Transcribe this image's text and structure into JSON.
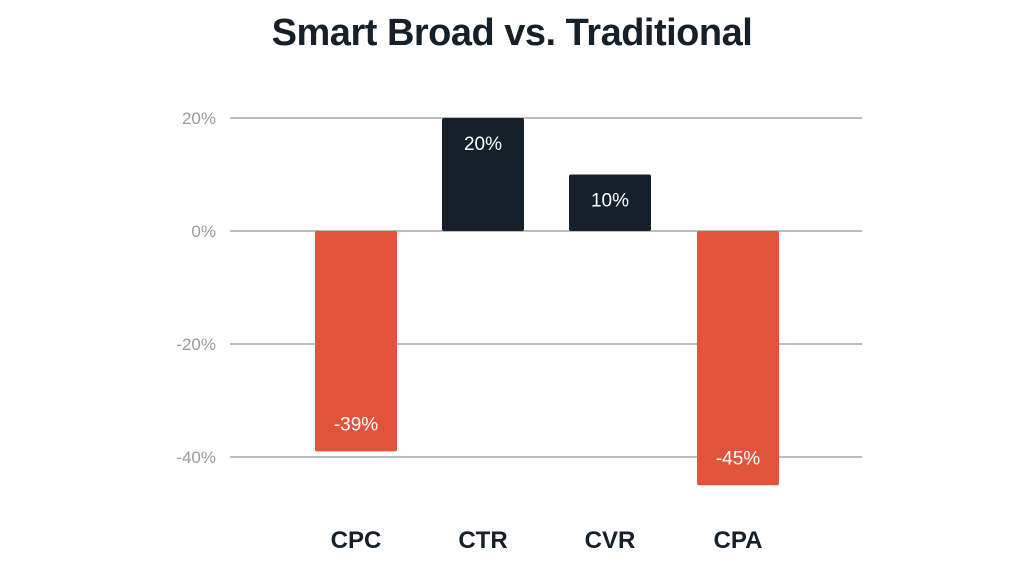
{
  "chart_data": {
    "type": "bar",
    "title": "Smart Broad vs. Traditional",
    "xlabel": "",
    "ylabel": "",
    "categories": [
      "CPC",
      "CTR",
      "CVR",
      "CPA"
    ],
    "values": [
      -39,
      20,
      10,
      -45
    ],
    "value_labels": [
      "-39%",
      "20%",
      "10%",
      "-45%"
    ],
    "ylim": [
      -45,
      20
    ],
    "yticks": [
      20,
      0,
      -20,
      -40
    ],
    "ytick_labels": [
      "20%",
      "0%",
      "-20%",
      "-40%"
    ],
    "grid": true,
    "legend": "none",
    "colors": {
      "positive": "#16202a",
      "negative": "#e2533c",
      "grid": "#a6a6a6",
      "tick_text": "#9a9a9a",
      "title_text": "#16202a"
    }
  }
}
